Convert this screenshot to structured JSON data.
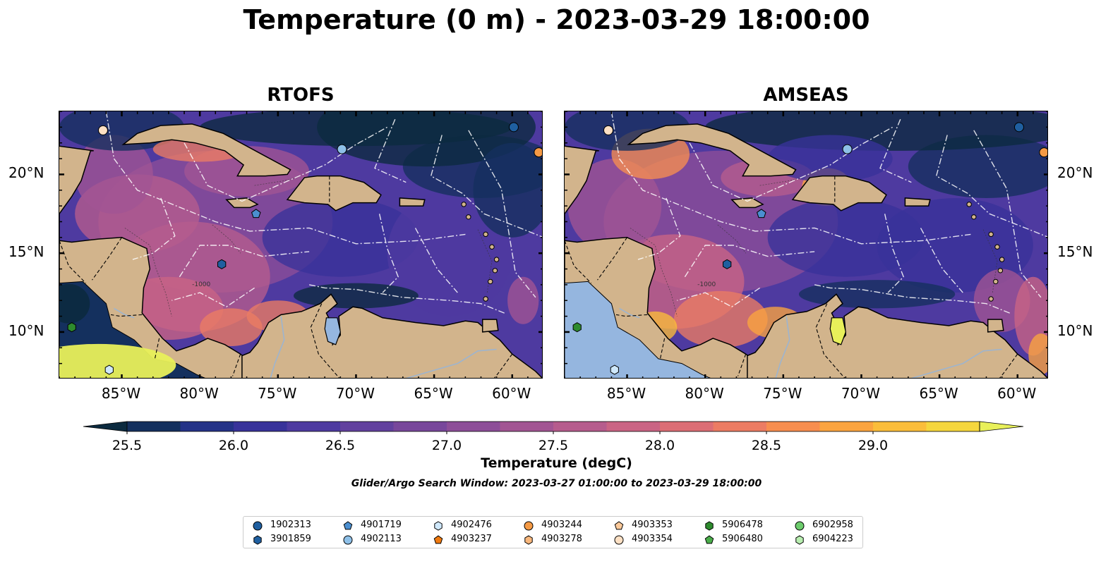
{
  "title": "Temperature (0 m) - 2023-03-29 18:00:00",
  "panels": [
    {
      "title": "RTOFS"
    },
    {
      "title": "AMSEAS"
    }
  ],
  "axes": {
    "lon_ticks": [
      "85°W",
      "80°W",
      "75°W",
      "70°W",
      "65°W",
      "60°W"
    ],
    "lat_ticks": [
      "20°N",
      "15°N",
      "10°N"
    ],
    "lon_range": [
      -89,
      -58
    ],
    "lat_range": [
      7,
      24
    ],
    "contour_label": "-1000"
  },
  "colorbar": {
    "label": "Temperature (degC)",
    "ticks": [
      "25.5",
      "26.0",
      "26.5",
      "27.0",
      "27.5",
      "28.0",
      "28.5",
      "29.0"
    ],
    "colors": [
      "#0b2a3f",
      "#14305e",
      "#243287",
      "#38329a",
      "#4e3aa0",
      "#62419e",
      "#78479b",
      "#8d4e98",
      "#a25593",
      "#b65c8d",
      "#ca6484",
      "#dc6e75",
      "#ec7c63",
      "#f78e4f",
      "#fba43f",
      "#fbbd3a",
      "#f5d63d",
      "#e8f05a"
    ],
    "extend": "both"
  },
  "search_window": "Glider/Argo Search Window: 2023-03-27 01:00:00 to 2023-03-29 18:00:00",
  "land_color": "#d2b48c",
  "legend": [
    {
      "id": "1902313",
      "marker": "circle",
      "color": "#1f5fa0"
    },
    {
      "id": "3901859",
      "marker": "hexagon",
      "color": "#1f5fa0"
    },
    {
      "id": "4901719",
      "marker": "pentagon",
      "color": "#4b8fd0"
    },
    {
      "id": "4902113",
      "marker": "circle",
      "color": "#8ec0e8"
    },
    {
      "id": "4902476",
      "marker": "hexagon",
      "color": "#cfe8fb"
    },
    {
      "id": "4903237",
      "marker": "pentagon",
      "color": "#f07a10"
    },
    {
      "id": "4903244",
      "marker": "circle",
      "color": "#f59a45"
    },
    {
      "id": "4903278",
      "marker": "hexagon",
      "color": "#f9b77c"
    },
    {
      "id": "4903353",
      "marker": "pentagon",
      "color": "#fbc99a"
    },
    {
      "id": "4903354",
      "marker": "circle",
      "color": "#fde0c4"
    },
    {
      "id": "5906478",
      "marker": "hexagon",
      "color": "#2e8b2e"
    },
    {
      "id": "5906480",
      "marker": "pentagon",
      "color": "#4aad4a"
    },
    {
      "id": "6902958",
      "marker": "circle",
      "color": "#6ccc6c"
    },
    {
      "id": "6904223",
      "marker": "hexagon",
      "color": "#b8eeb0"
    }
  ],
  "floats": [
    {
      "id": "4903354",
      "lon": -86.2,
      "lat": 22.8
    },
    {
      "id": "1902313",
      "lon": -59.9,
      "lat": 23.0
    },
    {
      "id": "4903244",
      "lon": -58.3,
      "lat": 21.4
    },
    {
      "id": "4902113",
      "lon": -70.9,
      "lat": 21.6
    },
    {
      "id": "4901719",
      "lon": -76.4,
      "lat": 17.5
    },
    {
      "id": "3901859",
      "lon": -78.6,
      "lat": 14.3
    },
    {
      "id": "5906478",
      "lon": -88.2,
      "lat": 10.3
    },
    {
      "id": "4902476",
      "lon": -85.8,
      "lat": 7.6
    }
  ]
}
